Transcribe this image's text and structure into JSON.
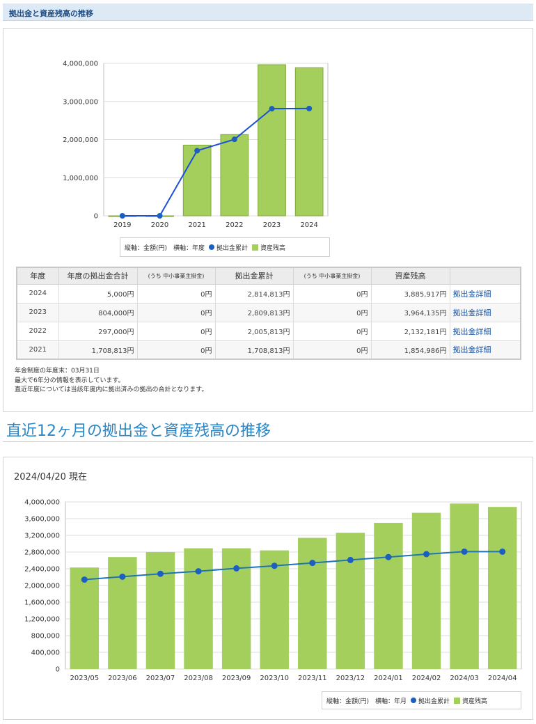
{
  "header": {
    "title": "拠出金と資産残高の推移"
  },
  "chart1_data": {
    "type": "bar",
    "categories": [
      "2019",
      "2020",
      "2021",
      "2022",
      "2023",
      "2024"
    ],
    "series": [
      {
        "name": "資産残高",
        "type": "bar",
        "values": [
          0,
          0,
          1854986,
          2132181,
          3964135,
          3885917
        ]
      },
      {
        "name": "拠出金累計",
        "type": "line",
        "values": [
          0,
          0,
          1708813,
          2005813,
          2809813,
          2814813
        ]
      }
    ],
    "ylim": [
      0,
      4000000
    ],
    "yticks": [
      "0",
      "1,000,000",
      "2,000,000",
      "3,000,000",
      "4,000,000"
    ]
  },
  "legend": {
    "axes_note1": "縦軸：金額(円)　横軸：年度",
    "axes_note2": "縦軸：金額(円)　横軸：年月",
    "line_label": "拠出金累計",
    "bar_label": "資産残高"
  },
  "table": {
    "headers": [
      "年度",
      "年度の拠出金合計",
      "(うち 中小事業主掛金)",
      "拠出金累計",
      "(うち 中小事業主掛金)",
      "資産残高",
      ""
    ],
    "rows": [
      {
        "year": "2024",
        "total": "5,000円",
        "sme1": "0円",
        "cumulative": "2,814,813円",
        "sme2": "0円",
        "assets": "3,885,917円",
        "link": "拠出金詳細"
      },
      {
        "year": "2023",
        "total": "804,000円",
        "sme1": "0円",
        "cumulative": "2,809,813円",
        "sme2": "0円",
        "assets": "3,964,135円",
        "link": "拠出金詳細"
      },
      {
        "year": "2022",
        "total": "297,000円",
        "sme1": "0円",
        "cumulative": "2,005,813円",
        "sme2": "0円",
        "assets": "2,132,181円",
        "link": "拠出金詳細"
      },
      {
        "year": "2021",
        "total": "1,708,813円",
        "sme1": "0円",
        "cumulative": "1,708,813円",
        "sme2": "0円",
        "assets": "1,854,986円",
        "link": "拠出金詳細"
      }
    ]
  },
  "notes": [
    "年金制度の年度末：03月31日",
    "最大で6年分の情報を表示しています。",
    "直近年度については当該年度内に拠出済みの拠出の合計となります。"
  ],
  "section2": {
    "title": "直近12ヶ月の拠出金と資産残高の推移",
    "as_of": "2024/04/20 現在"
  },
  "chart_data": {
    "type": "bar",
    "categories": [
      "2023/05",
      "2023/06",
      "2023/07",
      "2023/08",
      "2023/09",
      "2023/10",
      "2023/11",
      "2023/12",
      "2024/01",
      "2024/02",
      "2024/03",
      "2024/04"
    ],
    "series": [
      {
        "name": "資産残高",
        "type": "bar",
        "values": [
          2430000,
          2680000,
          2800000,
          2890000,
          2890000,
          2840000,
          3140000,
          3260000,
          3500000,
          3740000,
          3960000,
          3880000
        ]
      },
      {
        "name": "拠出金累計",
        "type": "line",
        "values": [
          2140000,
          2210000,
          2280000,
          2340000,
          2410000,
          2470000,
          2540000,
          2610000,
          2680000,
          2750000,
          2810000,
          2810000
        ]
      }
    ],
    "ylim": [
      0,
      4000000
    ],
    "yticks": [
      "0",
      "400,000",
      "800,000",
      "1,200,000",
      "1,600,000",
      "2,000,000",
      "2,400,000",
      "2,800,000",
      "3,200,000",
      "3,600,000",
      "4,000,000"
    ]
  },
  "colors": {
    "bar": "#a4cf5c",
    "bar_stroke": "#7fa83a",
    "line": "#1b4fd8",
    "line2": "#1f74b8",
    "point": "#1b5fc1"
  }
}
